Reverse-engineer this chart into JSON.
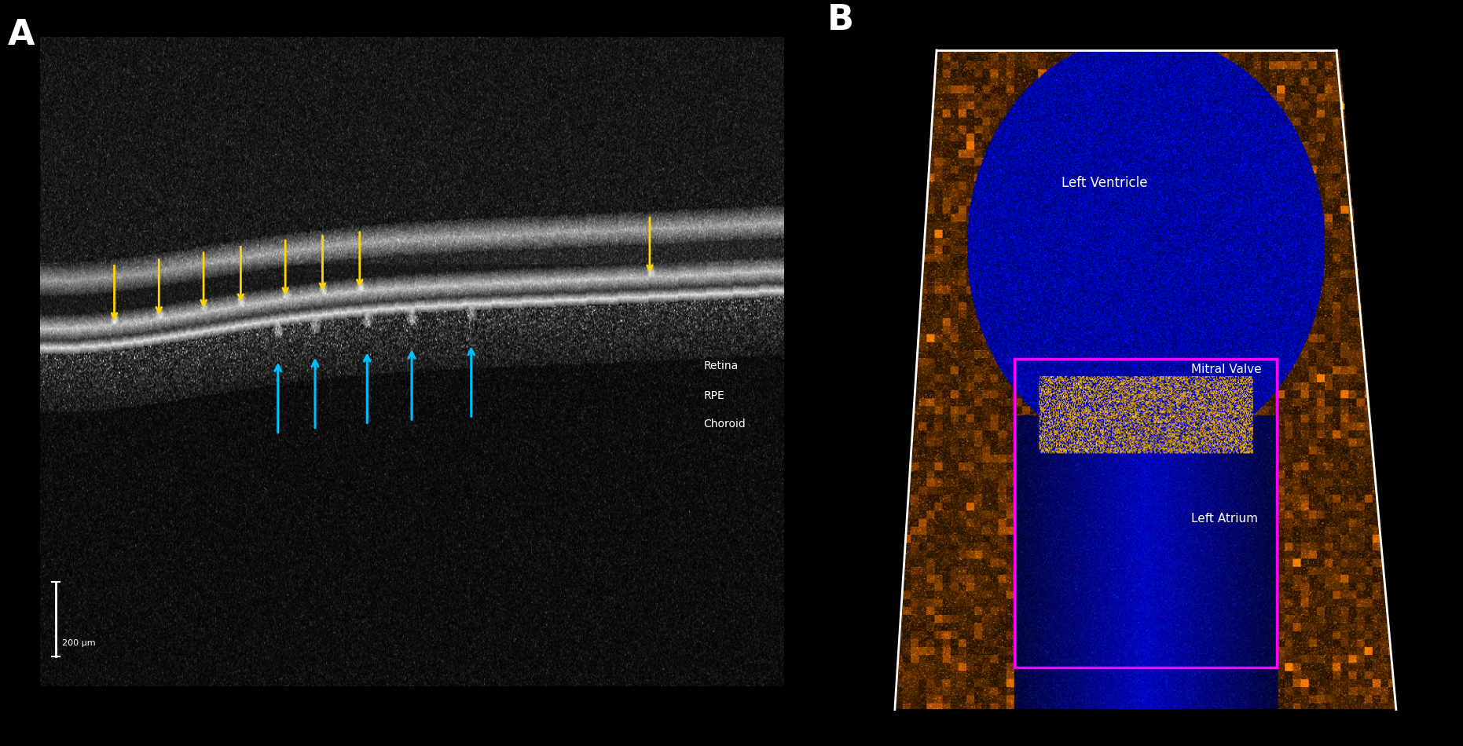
{
  "background_color": "#000000",
  "panel_A_label": "A",
  "panel_B_label": "B",
  "label_color": "#ffffff",
  "label_fontsize": 32,
  "yellow_arrow_color": "#FFD700",
  "blue_arrow_color": "#00BFFF",
  "retina_label": "Retina",
  "rpe_label": "RPE",
  "choroid_label": "Choroid",
  "scale_bar_label": "200 μm",
  "left_ventricle_label": "Left Ventricle",
  "mitral_valve_label": "Mitral Valve",
  "left_atrium_label": "Left Atrium",
  "text_color_white": "#ffffff",
  "magenta_rect_color": "#FF00FF",
  "annotation_fontsize": 11,
  "scale_label_fontsize": 9
}
